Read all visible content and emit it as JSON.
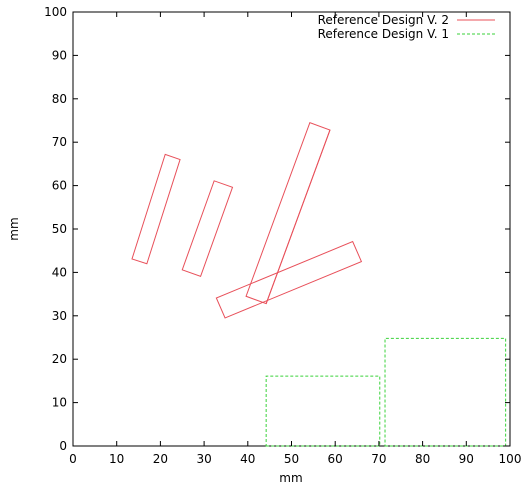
{
  "chart_data": {
    "type": "line",
    "title": "",
    "xlabel": "mm",
    "ylabel": "mm",
    "xlim": [
      0,
      100
    ],
    "ylim": [
      0,
      100
    ],
    "x_ticks": [
      0,
      10,
      20,
      30,
      40,
      50,
      60,
      70,
      80,
      90,
      100
    ],
    "y_ticks": [
      0,
      10,
      20,
      30,
      40,
      50,
      60,
      70,
      80,
      90,
      100
    ],
    "grid": false,
    "legend_position": "top-right",
    "colors": {
      "v2": "#e8505a",
      "v1": "#3ad23a"
    },
    "series": [
      {
        "name": "Reference Design V. 2",
        "style": "solid",
        "blocks": [
          {
            "label": "block-v2-outer-left",
            "outline": [
              [
                44.2,
                32.8
              ],
              [
                58.8,
                72.8
              ],
              [
                54.2,
                74.5
              ],
              [
                39.6,
                34.5
              ]
            ],
            "strands": [
              [
                [
                  44.2,
                  32.8
                ],
                [
                  58.8,
                  72.8
                ]
              ]
            ]
          },
          {
            "label": "block-v2-inner-small",
            "outline": [
              [
                29.2,
                39.1
              ],
              [
                36.5,
                59.6
              ],
              [
                32.3,
                61.1
              ],
              [
                25.0,
                40.6
              ]
            ],
            "strands": []
          },
          {
            "label": "block-v2-inner-large",
            "outline": [
              [
                34.8,
                29.5
              ],
              [
                66.0,
                42.5
              ],
              [
                64.0,
                47.1
              ],
              [
                32.8,
                34.1
              ]
            ],
            "strands": []
          },
          {
            "label": "block-v2-top-small",
            "outline": [
              [
                13.5,
                43.1
              ],
              [
                21.1,
                67.2
              ],
              [
                24.5,
                66.0
              ],
              [
                16.9,
                42.0
              ]
            ],
            "strands": []
          }
        ]
      },
      {
        "name": "Reference Design V. 1",
        "style": "dashed",
        "blocks": [
          {
            "label": "block-v1-bottom-lower",
            "outline": [
              [
                44.2,
                0.0
              ],
              [
                70.2,
                0.0
              ],
              [
                70.2,
                16.1
              ],
              [
                44.2,
                16.1
              ]
            ],
            "strands": []
          },
          {
            "label": "block-v1-bottom-right",
            "outline": [
              [
                71.4,
                0.0
              ],
              [
                99.0,
                0.0
              ],
              [
                99.0,
                24.8
              ],
              [
                71.4,
                24.8
              ]
            ],
            "strands": []
          }
        ]
      }
    ]
  }
}
